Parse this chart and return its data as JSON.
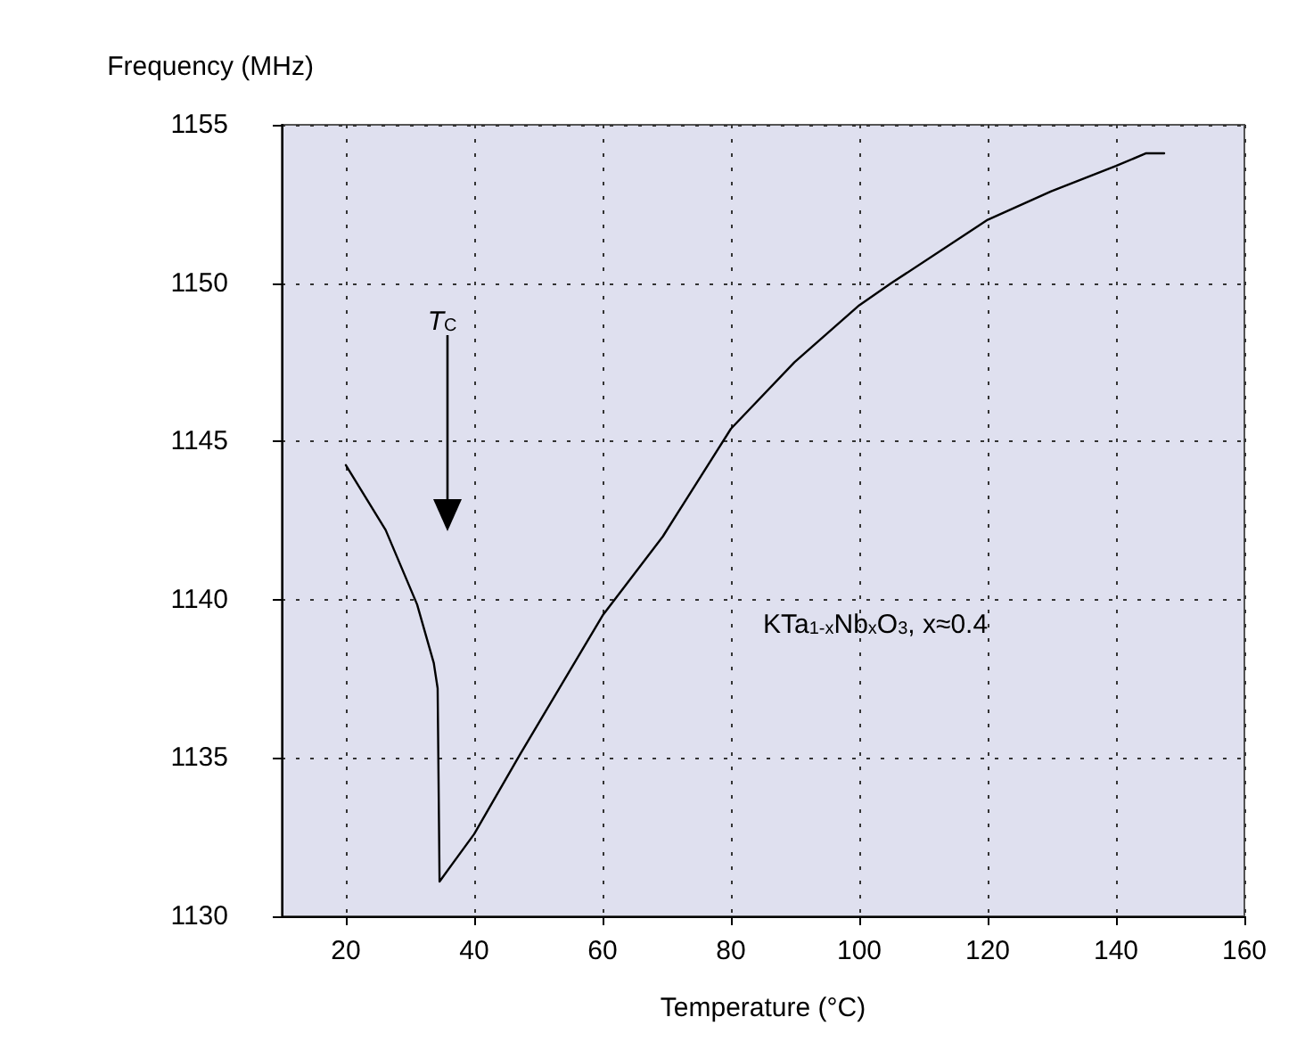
{
  "chart_data": {
    "type": "line",
    "xlabel": "Temperature (°C)",
    "ylabel": "Frequency (MHz)",
    "x": [
      20,
      26.2,
      31.1,
      33.7,
      34.3,
      34.6,
      40,
      47.1,
      60,
      69.4,
      80,
      89.9,
      100,
      105,
      120,
      129.9,
      140,
      144.7,
      147.5
    ],
    "series": [
      {
        "color": "#000000",
        "values": [
          1144.25,
          1142.2,
          1139.85,
          1138.0,
          1137.2,
          1131.1,
          1132.6,
          1135.1,
          1139.5,
          1142.0,
          1145.4,
          1147.5,
          1149.3,
          1150.0,
          1152.0,
          1152.9,
          1153.7,
          1154.1,
          1154.1
        ]
      }
    ],
    "xlim": [
      10,
      160
    ],
    "xticks": [
      20,
      40,
      60,
      80,
      100,
      120,
      140,
      160
    ],
    "ylim": [
      1130,
      1155
    ],
    "yticks": [
      1130,
      1135,
      1140,
      1145,
      1150,
      1155
    ],
    "grid": true,
    "marker": "none",
    "line_style": "solid",
    "annotations": [
      "T$_{C}$",
      "KTa$_{1-x}$Nb$_{x}$O$_{3}$, x≈0.4"
    ]
  }
}
